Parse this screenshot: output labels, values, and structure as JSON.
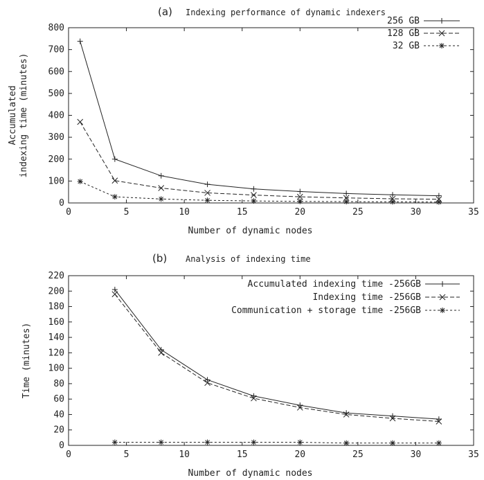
{
  "chart_data": [
    {
      "type": "line",
      "panel_label": "(a)",
      "title": "Indexing performance of dynamic indexers",
      "xlabel": "Number of dynamic nodes",
      "ylabel_lines": [
        "Accumulated",
        "indexing time (minutes)"
      ],
      "xlim": [
        0,
        35
      ],
      "ylim": [
        0,
        800
      ],
      "xticks": [
        0,
        5,
        10,
        15,
        20,
        25,
        30,
        35
      ],
      "yticks": [
        0,
        100,
        200,
        300,
        400,
        500,
        600,
        700,
        800
      ],
      "grid": false,
      "legend_position": "top-right",
      "x": [
        1,
        4,
        8,
        12,
        16,
        20,
        24,
        28,
        32
      ],
      "series": [
        {
          "name": "256 GB",
          "marker": "plus",
          "dash": "solid",
          "values": [
            738,
            200,
            124,
            85,
            64,
            52,
            43,
            37,
            33
          ]
        },
        {
          "name": "128 GB",
          "marker": "cross",
          "dash": "long-dash",
          "values": [
            370,
            102,
            68,
            46,
            36,
            28,
            23,
            19,
            17
          ]
        },
        {
          "name": "32 GB",
          "marker": "star",
          "dash": "short-dash",
          "values": [
            98,
            28,
            18,
            12,
            9,
            7,
            6,
            5,
            4
          ]
        }
      ]
    },
    {
      "type": "line",
      "panel_label": "(b)",
      "title": "Analysis of indexing time",
      "xlabel": "Number of dynamic nodes",
      "ylabel": "Time (minutes)",
      "xlim": [
        0,
        35
      ],
      "ylim": [
        0,
        220
      ],
      "xticks": [
        0,
        5,
        10,
        15,
        20,
        25,
        30,
        35
      ],
      "yticks": [
        0,
        20,
        40,
        60,
        80,
        100,
        120,
        140,
        160,
        180,
        200,
        220
      ],
      "grid": false,
      "legend_position": "top-right",
      "x": [
        4,
        8,
        12,
        16,
        20,
        24,
        28,
        32
      ],
      "series": [
        {
          "name": "Accumulated indexing time -256GB",
          "marker": "plus",
          "dash": "solid",
          "values": [
            202,
            124,
            85,
            64,
            52,
            42,
            38,
            34
          ]
        },
        {
          "name": "Indexing time -256GB",
          "marker": "cross",
          "dash": "long-dash",
          "values": [
            196,
            120,
            81,
            61,
            49,
            40,
            35,
            31
          ]
        },
        {
          "name": "Communication + storage time -256GB",
          "marker": "star",
          "dash": "short-dash",
          "values": [
            4,
            4,
            4,
            4,
            4,
            3,
            3,
            3
          ]
        }
      ]
    }
  ]
}
